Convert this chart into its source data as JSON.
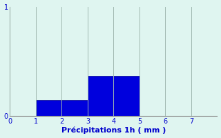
{
  "categories": [
    1,
    2,
    3,
    4
  ],
  "values": [
    0.15,
    0.15,
    0.37,
    0.37
  ],
  "bar_color": "#0000dd",
  "bar_edge_color": "#00008b",
  "background_color": "#dff5f0",
  "xlabel": "Précipitations 1h ( mm )",
  "xlabel_color": "#0000cc",
  "xlabel_fontsize": 8,
  "tick_color": "#0000cc",
  "tick_fontsize": 7,
  "ylim": [
    0,
    1
  ],
  "xlim": [
    0,
    8
  ],
  "yticks": [
    0,
    1
  ],
  "xticks": [
    0,
    1,
    2,
    3,
    4,
    5,
    6,
    7
  ],
  "grid_color": "#a0b8b0",
  "axis_color": "#888888",
  "bar_width": 1.0
}
